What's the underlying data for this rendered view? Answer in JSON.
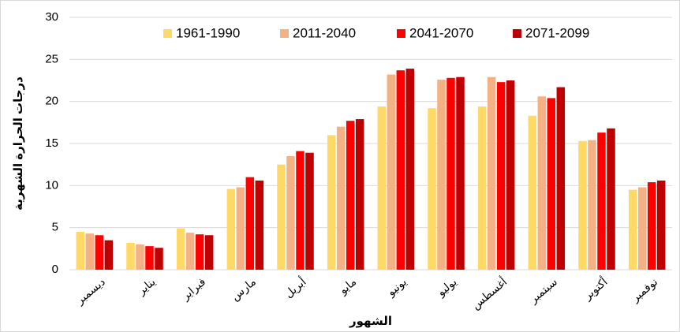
{
  "chart_data": {
    "type": "bar",
    "y_label": "درجات الحرارة الشهرية",
    "x_label": "الشهور",
    "categories": [
      "ديسمبر",
      "يناير",
      "فبراير",
      "مارس",
      "أبريل",
      "مايو",
      "يونيو",
      "يوليو",
      "أغسطس",
      "سبتمبر",
      "أكتوبر",
      "نوفمبر"
    ],
    "series": [
      {
        "name": "1961-1990",
        "color": "#ffd966",
        "values": [
          4.5,
          3.2,
          4.9,
          9.6,
          12.5,
          16.0,
          19.4,
          19.2,
          19.4,
          18.3,
          15.3,
          9.5
        ]
      },
      {
        "name": "2011-2040",
        "color": "#f4b183",
        "values": [
          4.3,
          3.0,
          4.4,
          9.8,
          13.5,
          17.0,
          23.2,
          22.6,
          22.9,
          20.6,
          15.4,
          9.8
        ]
      },
      {
        "name": "2041-2070",
        "color": "#ff0000",
        "values": [
          4.1,
          2.8,
          4.2,
          11.0,
          14.1,
          17.7,
          23.7,
          22.8,
          22.3,
          20.4,
          16.3,
          10.4
        ]
      },
      {
        "name": "2071-2099",
        "color": "#c00000",
        "values": [
          3.5,
          2.6,
          4.1,
          10.6,
          13.9,
          17.9,
          23.9,
          22.9,
          22.5,
          21.7,
          16.8,
          10.6
        ]
      }
    ],
    "ylim": [
      0,
      30
    ],
    "yticks": [
      0,
      5,
      10,
      15,
      20,
      25,
      30
    ],
    "grid": true,
    "legend": "top"
  }
}
